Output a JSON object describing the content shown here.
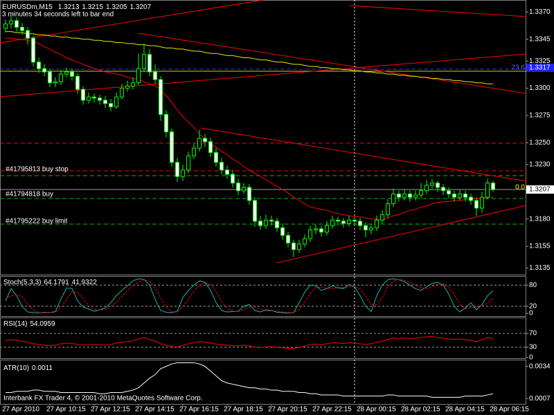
{
  "chart_data": [
    {
      "type": "candlestick",
      "title": "EURUSDm,M15",
      "subtitle": "3 minutes 34 seconds left to bar end",
      "categories": [
        "27 Apr 2010",
        null,
        null,
        null,
        null,
        null,
        null,
        null,
        "27 Apr 10:15",
        null,
        null,
        null,
        null,
        null,
        null,
        null,
        "27 Apr 12:15",
        null,
        null,
        null,
        null,
        null,
        null,
        null,
        "27 Apr 14:15",
        null,
        null,
        null,
        null,
        null,
        null,
        null,
        "27 Apr 16:15",
        null,
        null,
        null,
        null,
        null,
        null,
        null,
        "27 Apr 18:15",
        null,
        null,
        null,
        null,
        null,
        null,
        null,
        "27 Apr 20:15",
        null,
        null,
        null,
        null,
        null,
        null,
        null,
        "27 Apr 22:15",
        null,
        null,
        null,
        null,
        null,
        null,
        null,
        "28 Apr 00:15",
        null,
        null,
        null,
        null,
        null,
        null,
        null,
        "28 Apr 02:15",
        null,
        null,
        null,
        null,
        null,
        null,
        null,
        "28 Apr 04:15",
        null,
        null,
        null,
        null,
        null,
        null,
        null,
        "28 Apr 06:15"
      ],
      "open": [
        1.3355,
        1.3359,
        1.3362,
        1.3356,
        1.3353,
        1.3346,
        1.3324,
        1.3318,
        1.3315,
        1.3305,
        1.3306,
        1.3313,
        1.3315,
        1.3311,
        1.3299,
        1.3289,
        1.3292,
        1.3291,
        1.3289,
        1.3286,
        1.3283,
        1.3292,
        1.33,
        1.3302,
        1.3305,
        1.3318,
        1.3331,
        1.3315,
        1.3308,
        1.3276,
        1.326,
        1.3232,
        1.3219,
        1.3225,
        1.3238,
        1.3245,
        1.3254,
        1.3251,
        1.3241,
        1.3232,
        1.3225,
        1.3221,
        1.3213,
        1.3206,
        1.3209,
        1.3197,
        1.3178,
        1.3174,
        1.3179,
        1.3178,
        1.3172,
        1.3165,
        1.3158,
        1.3152,
        1.3157,
        1.3162,
        1.317,
        1.3171,
        1.3168,
        1.3174,
        1.3179,
        1.3178,
        1.3176,
        1.3179,
        1.3178,
        1.3174,
        1.317,
        1.3172,
        1.3179,
        1.3184,
        1.3194,
        1.3203,
        1.32,
        1.3203,
        1.32,
        1.3202,
        1.3206,
        1.3211,
        1.3213,
        1.3209,
        1.3206,
        1.3203,
        1.32,
        1.3203,
        1.32,
        1.3197,
        1.319,
        1.32,
        1.3213
      ],
      "high": [
        1.3363,
        1.3368,
        1.3365,
        1.336,
        1.3356,
        1.3348,
        1.3328,
        1.3322,
        1.3318,
        1.331,
        1.3317,
        1.3319,
        1.3318,
        1.3314,
        1.3302,
        1.3296,
        1.3295,
        1.3294,
        1.3293,
        1.329,
        1.3296,
        1.3304,
        1.3307,
        1.331,
        1.3332,
        1.3341,
        1.3336,
        1.3322,
        1.3311,
        1.328,
        1.3263,
        1.3236,
        1.323,
        1.3242,
        1.325,
        1.3262,
        1.3258,
        1.3255,
        1.3245,
        1.3236,
        1.3229,
        1.3225,
        1.3217,
        1.3213,
        1.3212,
        1.32,
        1.3183,
        1.3184,
        1.3183,
        1.3181,
        1.3176,
        1.3168,
        1.3161,
        1.3161,
        1.3166,
        1.3174,
        1.3175,
        1.3174,
        1.3178,
        1.3183,
        1.3182,
        1.3181,
        1.3183,
        1.3182,
        1.3181,
        1.3177,
        1.3176,
        1.3183,
        1.3188,
        1.3198,
        1.3208,
        1.3206,
        1.3207,
        1.3206,
        1.3206,
        1.3213,
        1.3216,
        1.3217,
        1.3215,
        1.3212,
        1.3209,
        1.3206,
        1.3207,
        1.3206,
        1.3203,
        1.32,
        1.3205,
        1.3217,
        1.3215
      ],
      "low": [
        1.3351,
        1.3355,
        1.3352,
        1.3349,
        1.334,
        1.332,
        1.3314,
        1.3311,
        1.3301,
        1.3301,
        1.3303,
        1.331,
        1.3307,
        1.3295,
        1.3285,
        1.3286,
        1.3287,
        1.3285,
        1.3282,
        1.3279,
        1.3281,
        1.329,
        1.3297,
        1.3299,
        1.3303,
        1.3315,
        1.3311,
        1.3304,
        1.327,
        1.3255,
        1.3228,
        1.3214,
        1.3215,
        1.3222,
        1.3235,
        1.3242,
        1.3246,
        1.3237,
        1.3228,
        1.3221,
        1.3217,
        1.3209,
        1.3202,
        1.3203,
        1.3193,
        1.3173,
        1.317,
        1.3171,
        1.3174,
        1.3168,
        1.3161,
        1.3154,
        1.3145,
        1.3149,
        1.3154,
        1.3159,
        1.3166,
        1.3164,
        1.3165,
        1.3171,
        1.3174,
        1.3172,
        1.3173,
        1.3174,
        1.317,
        1.3163,
        1.3166,
        1.3169,
        1.3176,
        1.3181,
        1.3191,
        1.3196,
        1.3197,
        1.3196,
        1.3197,
        1.3199,
        1.3203,
        1.3208,
        1.3205,
        1.3202,
        1.3199,
        1.3196,
        1.3197,
        1.3196,
        1.3193,
        1.3183,
        1.3186,
        1.3198,
        1.3205
      ],
      "close": [
        1.3359,
        1.3362,
        1.3356,
        1.3353,
        1.3346,
        1.3324,
        1.3318,
        1.3315,
        1.3305,
        1.3306,
        1.3313,
        1.3315,
        1.3311,
        1.3299,
        1.3289,
        1.3292,
        1.3291,
        1.3289,
        1.3286,
        1.3283,
        1.3292,
        1.33,
        1.3302,
        1.3305,
        1.3318,
        1.3331,
        1.3315,
        1.3308,
        1.3276,
        1.326,
        1.3232,
        1.3219,
        1.3225,
        1.3238,
        1.3245,
        1.3254,
        1.3251,
        1.3241,
        1.3232,
        1.3225,
        1.3221,
        1.3213,
        1.3206,
        1.3209,
        1.3197,
        1.3178,
        1.3174,
        1.3179,
        1.3178,
        1.3172,
        1.3165,
        1.3158,
        1.3152,
        1.3157,
        1.3162,
        1.317,
        1.3171,
        1.3168,
        1.3174,
        1.3179,
        1.3178,
        1.3176,
        1.3179,
        1.3178,
        1.3174,
        1.317,
        1.3172,
        1.3179,
        1.3184,
        1.3194,
        1.3203,
        1.32,
        1.3203,
        1.32,
        1.3202,
        1.3206,
        1.3211,
        1.3213,
        1.3209,
        1.3206,
        1.3203,
        1.32,
        1.3203,
        1.32,
        1.3197,
        1.319,
        1.32,
        1.3213,
        1.3207
      ],
      "up_color": "#000000",
      "down_color": "#ffffff",
      "outline_color": "#00ff00",
      "lines": [
        {
          "color": "#ff0000",
          "values": [
            1.3346,
            1.3346,
            1.3345,
            1.3345,
            1.3344,
            1.3343,
            1.3341,
            1.3338,
            1.3336,
            1.3333,
            1.3331,
            1.3328,
            1.3326,
            1.3324,
            1.3322,
            1.332,
            1.3318,
            1.3317,
            1.3315,
            1.3314,
            1.3313,
            1.3312,
            1.331,
            1.3309,
            1.3308,
            1.3306,
            1.3304,
            1.3302,
            1.3299,
            1.3293,
            1.3287,
            1.328,
            1.3274,
            1.3269,
            1.3264,
            1.3258,
            1.3253,
            1.3249,
            1.3246,
            1.3242,
            1.3239,
            1.3235,
            1.3232,
            1.3228,
            1.3225,
            1.3222,
            1.3219,
            1.3216,
            1.3213,
            1.321,
            1.3207,
            1.3204,
            1.32,
            1.3197,
            1.3194,
            1.3191,
            1.319,
            1.3189,
            1.3188,
            1.3186,
            1.3185,
            1.3184,
            1.3183,
            1.3182,
            1.3182,
            1.3181,
            1.318,
            1.318,
            1.3179,
            1.3181,
            1.3183,
            1.3184,
            1.3186,
            1.3188,
            1.3189,
            1.3191,
            1.3192,
            1.3194,
            1.3195,
            1.3196,
            1.3196,
            1.3197,
            1.3197,
            1.3198,
            1.3198,
            1.3199,
            1.3199,
            1.32,
            1.32
          ]
        },
        {
          "color": "#e8e800",
          "values": [
            1.3352,
            1.3352,
            1.3351,
            1.3351,
            1.335,
            1.335,
            1.3349,
            1.3349,
            1.3348,
            1.3348,
            1.3347,
            1.3347,
            1.3346,
            1.3346,
            1.3345,
            1.3345,
            1.3344,
            1.3344,
            1.3343,
            1.3343,
            1.3342,
            1.3342,
            1.3341,
            1.3341,
            1.334,
            1.334,
            1.3339,
            1.3339,
            1.3338,
            1.3337,
            1.3337,
            1.3336,
            1.3336,
            1.3335,
            1.3334,
            1.3334,
            1.3333,
            1.3332,
            1.3332,
            1.3331,
            1.333,
            1.333,
            1.3329,
            1.3328,
            1.3328,
            1.3327,
            1.3326,
            1.3326,
            1.3325,
            1.3324,
            1.3324,
            1.3323,
            1.3322,
            1.3322,
            1.3321,
            1.332,
            1.332,
            1.3319,
            1.3319,
            1.3318,
            1.3318,
            1.3317,
            1.3317,
            1.3316,
            1.3316,
            1.3315,
            1.3315,
            1.3314,
            1.3314,
            1.3313,
            1.3313,
            1.3312,
            1.3312,
            1.3311,
            1.3311,
            1.331,
            1.331,
            1.3309,
            1.3309,
            1.3308,
            1.3308,
            1.3307,
            1.3307,
            1.3306,
            1.3306,
            1.3305,
            1.3305,
            1.3304,
            1.3304
          ]
        }
      ],
      "ylim": [
        1.3129,
        1.3381
      ],
      "yticks": [
        {
          "value": 1.337,
          "label": "1.3370"
        },
        1.3345,
        1.3325,
        {
          "value": 1.33,
          "label": "1.3300"
        },
        1.3275,
        {
          "value": 1.325,
          "label": "1.3250"
        },
        {
          "value": 1.323,
          "label": "1.3230"
        },
        {
          "value": 1.318,
          "label": "1.3180"
        },
        1.3155,
        1.3135
      ],
      "grid": false,
      "annotations": [
        "#41795813 buy stop",
        "#41794818 buy",
        "#41795222 buy limit",
        "23.6",
        "0.0",
        "1.3317"
      ]
    },
    {
      "type": "line",
      "title": "Stoch(5,3,3)",
      "series": [
        {
          "color": "#20b2aa",
          "values": [
            35,
            70,
            50,
            20,
            4,
            2,
            1,
            3,
            2,
            5,
            40,
            72,
            70,
            35,
            18,
            12,
            6,
            10,
            15,
            30,
            50,
            65,
            78,
            92,
            98,
            96,
            80,
            40,
            8,
            3,
            2,
            6,
            45,
            65,
            80,
            92,
            88,
            65,
            30,
            8,
            4,
            5,
            6,
            20,
            25,
            8,
            4,
            10,
            8,
            3,
            2,
            1,
            2,
            30,
            60,
            80,
            78,
            65,
            70,
            78,
            72,
            70,
            82,
            75,
            50,
            20,
            5,
            50,
            80,
            95,
            98,
            95,
            90,
            80,
            70,
            65,
            75,
            85,
            88,
            80,
            55,
            20,
            4,
            15,
            30,
            10,
            25,
            50,
            64.1791
          ]
        },
        {
          "color": "#ff0000",
          "dash": true,
          "values": [
            40,
            50,
            52,
            47,
            25,
            9,
            2,
            2,
            2,
            3,
            16,
            39,
            61,
            59,
            41,
            22,
            12,
            9,
            10,
            18,
            32,
            48,
            64,
            78,
            89,
            95,
            91,
            72,
            43,
            17,
            4,
            4,
            18,
            39,
            63,
            79,
            87,
            82,
            61,
            34,
            14,
            6,
            5,
            10,
            17,
            18,
            12,
            7,
            7,
            7,
            4,
            2,
            2,
            11,
            31,
            57,
            73,
            74,
            71,
            71,
            73,
            73,
            75,
            76,
            69,
            48,
            25,
            25,
            45,
            75,
            91,
            96,
            94,
            88,
            80,
            72,
            70,
            75,
            83,
            84,
            74,
            52,
            26,
            13,
            16,
            18,
            22,
            28,
            41.9322
          ]
        }
      ],
      "ylim": [
        0,
        100
      ],
      "yticks": [
        80,
        20,
        0
      ],
      "grid": true
    },
    {
      "type": "line",
      "title": "RSI(14)",
      "series": [
        {
          "color": "#ff0000",
          "values": [
            48,
            52,
            50,
            47,
            44,
            40,
            38,
            36,
            35,
            36,
            40,
            42,
            41,
            38,
            36,
            37,
            38,
            37,
            36,
            37,
            42,
            45,
            46,
            48,
            54,
            58,
            52,
            48,
            40,
            36,
            32,
            31,
            35,
            40,
            43,
            46,
            45,
            42,
            39,
            37,
            36,
            35,
            34,
            36,
            34,
            30,
            29,
            31,
            31,
            30,
            28,
            27,
            26,
            30,
            33,
            38,
            39,
            37,
            40,
            43,
            42,
            41,
            43,
            42,
            40,
            38,
            40,
            44,
            47,
            52,
            57,
            55,
            57,
            55,
            56,
            58,
            60,
            61,
            58,
            56,
            54,
            52,
            54,
            52,
            50,
            46,
            52,
            58,
            54.0959
          ]
        }
      ],
      "ylim": [
        0,
        100
      ],
      "yticks": [
        70,
        30,
        0
      ],
      "grid": true
    },
    {
      "type": "line",
      "title": "ATR(10)",
      "series": [
        {
          "color": "#ffffff",
          "values": [
            0.0012,
            0.0012,
            0.0013,
            0.0013,
            0.0013,
            0.0014,
            0.0014,
            0.0013,
            0.0013,
            0.0013,
            0.0012,
            0.0012,
            0.0012,
            0.0012,
            0.0012,
            0.0012,
            0.0012,
            0.0011,
            0.0011,
            0.0012,
            0.0012,
            0.0012,
            0.0013,
            0.0014,
            0.0016,
            0.002,
            0.0024,
            0.0027,
            0.0032,
            0.0034,
            0.0036,
            0.0037,
            0.0037,
            0.0037,
            0.0037,
            0.0036,
            0.0034,
            0.003,
            0.0026,
            0.0022,
            0.002,
            0.0019,
            0.0018,
            0.0017,
            0.0016,
            0.0016,
            0.0015,
            0.0015,
            0.0014,
            0.0014,
            0.0013,
            0.0013,
            0.0013,
            0.0012,
            0.0012,
            0.0011,
            0.0011,
            0.001,
            0.001,
            0.001,
            0.001,
            0.0009,
            0.0009,
            0.0009,
            0.0009,
            0.0009,
            0.0009,
            0.0009,
            0.0009,
            0.001,
            0.001,
            0.0009,
            0.0009,
            0.0009,
            0.0009,
            0.0009,
            0.0009,
            0.0008,
            0.0008,
            0.0008,
            0.0008,
            0.0008,
            0.0008,
            0.0009,
            0.0009,
            0.0009,
            0.0009,
            0.001,
            0.0011
          ]
        }
      ],
      "ylim": [
        0.0003,
        0.0039
      ],
      "yticks": [
        0.0034,
        0.0007
      ],
      "grid": false
    }
  ],
  "footer": "Interbank FX Trader 4, © 2001-2010 MetaQuotes Software Corp."
}
